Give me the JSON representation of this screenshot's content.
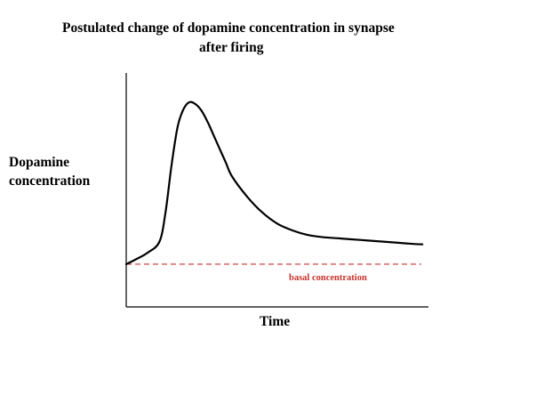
{
  "chart_data": {
    "type": "line",
    "title": "Postulated change of dopamine concentration in synapse after firing",
    "title_lines": [
      "Postulated change of dopamine concentration in synapse",
      "after firing"
    ],
    "ylabel_lines": [
      "Dopamine",
      "concentration"
    ],
    "xlabel": "Time",
    "xlim": [
      0,
      100
    ],
    "ylim": [
      0,
      100
    ],
    "grid": false,
    "legend": "none",
    "series": [
      {
        "color": "#000000",
        "style": "solid",
        "x": [
          0,
          3,
          7,
          11,
          13,
          15,
          17,
          19,
          21,
          23,
          25,
          27,
          29,
          31,
          33,
          35,
          40,
          45,
          50,
          55,
          60,
          65,
          70,
          75,
          80,
          85,
          90,
          95,
          98
        ],
        "y": [
          19,
          21,
          24,
          29,
          42,
          63,
          80,
          88,
          91,
          90,
          87,
          82,
          76,
          70,
          64,
          58,
          49,
          42,
          37,
          34,
          32,
          31,
          30.5,
          30,
          29.5,
          29,
          28.5,
          28,
          27.8
        ]
      }
    ],
    "reference_lines": [
      {
        "y": 19,
        "color": "#c8302a",
        "style": "dashed",
        "label": "basal concentration"
      }
    ]
  }
}
